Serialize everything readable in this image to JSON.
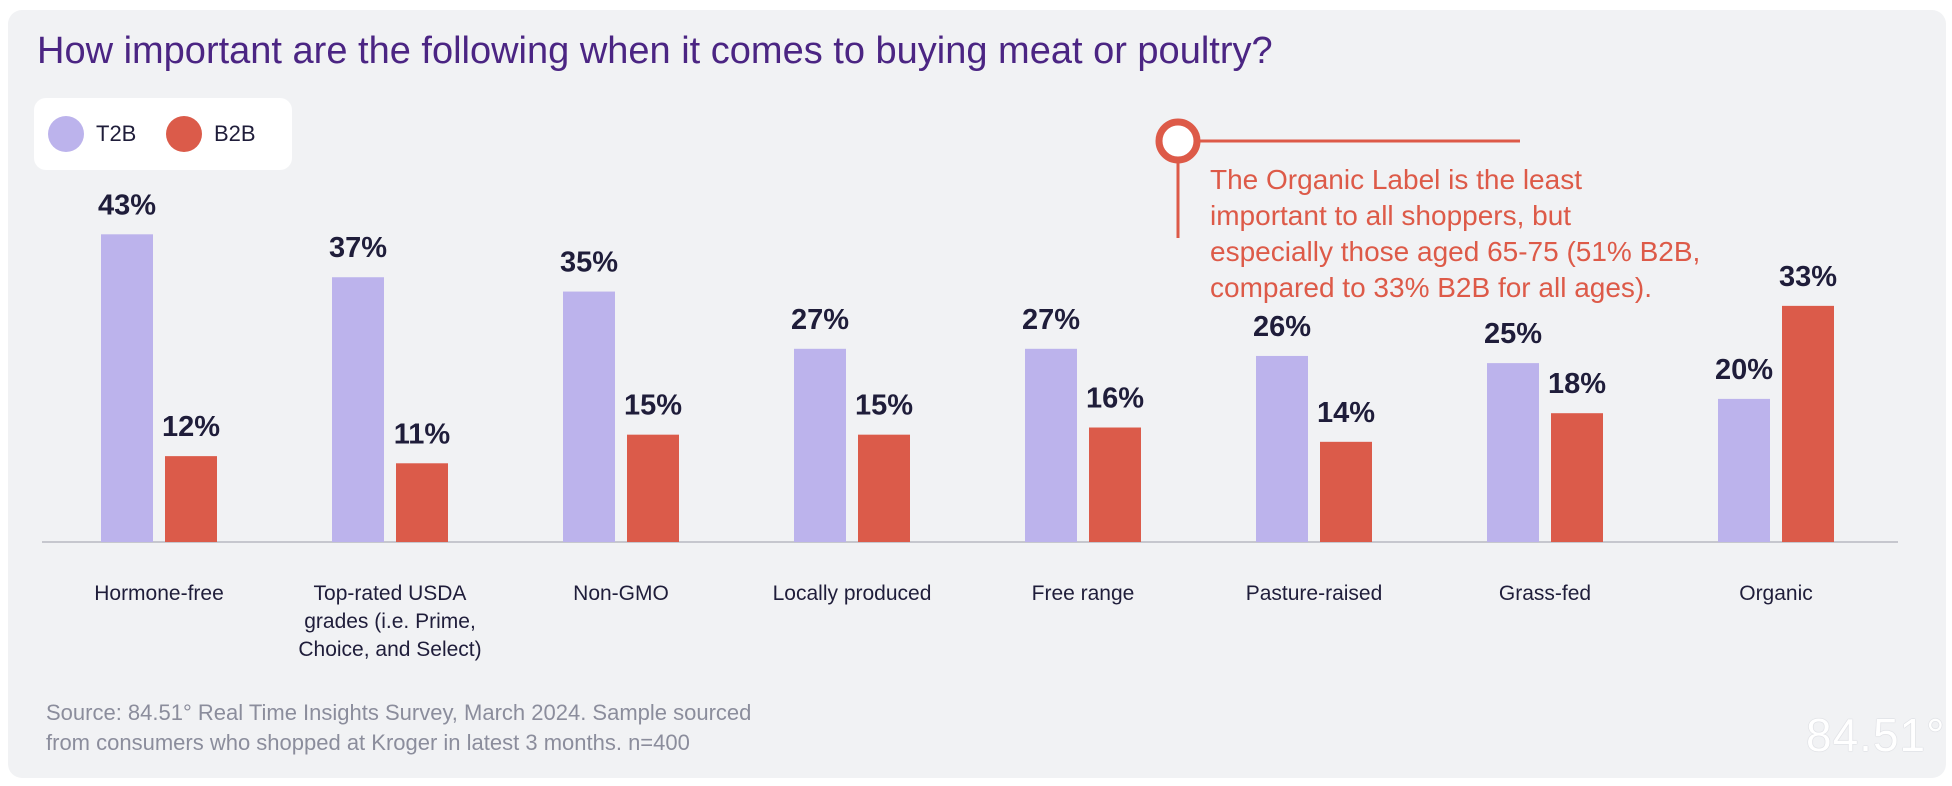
{
  "colors": {
    "t2b": "#bcb3ec",
    "b2b": "#db5b4a",
    "title": "#4b2583",
    "callout": "#dd5a48",
    "axis": "#c6c7ce"
  },
  "legend": {
    "items": [
      {
        "label": "T2B",
        "color": "#bcb3ec"
      },
      {
        "label": "B2B",
        "color": "#db5b4a"
      }
    ]
  },
  "chart_data": {
    "type": "bar",
    "title": "How important are the following when it comes to buying meat or poultry?",
    "categories": [
      [
        "Hormone-free"
      ],
      [
        "Top-rated USDA",
        "grades (i.e. Prime,",
        "Choice, and Select)"
      ],
      [
        "Non-GMO"
      ],
      [
        "Locally produced"
      ],
      [
        "Free range"
      ],
      [
        "Pasture-raised"
      ],
      [
        "Grass-fed"
      ],
      [
        "Organic"
      ]
    ],
    "series": [
      {
        "name": "T2B",
        "values": [
          43,
          37,
          35,
          27,
          27,
          26,
          25,
          20
        ],
        "labels": [
          "43%",
          "37%",
          "35%",
          "27%",
          "27%",
          "26%",
          "25%",
          "20%"
        ]
      },
      {
        "name": "B2B",
        "values": [
          12,
          11,
          15,
          15,
          16,
          14,
          18,
          33
        ],
        "labels": [
          "12%",
          "11%",
          "15%",
          "15%",
          "16%",
          "14%",
          "18%",
          "33%"
        ]
      }
    ],
    "ylim": [
      0,
      45
    ],
    "xlabel": "",
    "ylabel": ""
  },
  "callout": {
    "lines": [
      "The Organic Label is the least",
      "important to all shoppers, but",
      "especially those aged 65-75 (51% B2B,",
      "compared to 33% B2B for all ages)."
    ]
  },
  "source": {
    "line1": "Source:  84.51° Real Time Insights Survey, March 2024. Sample sourced",
    "line2": "from consumers who shopped at Kroger in latest 3 months. n=400"
  },
  "logo": {
    "text": "84.51°"
  }
}
